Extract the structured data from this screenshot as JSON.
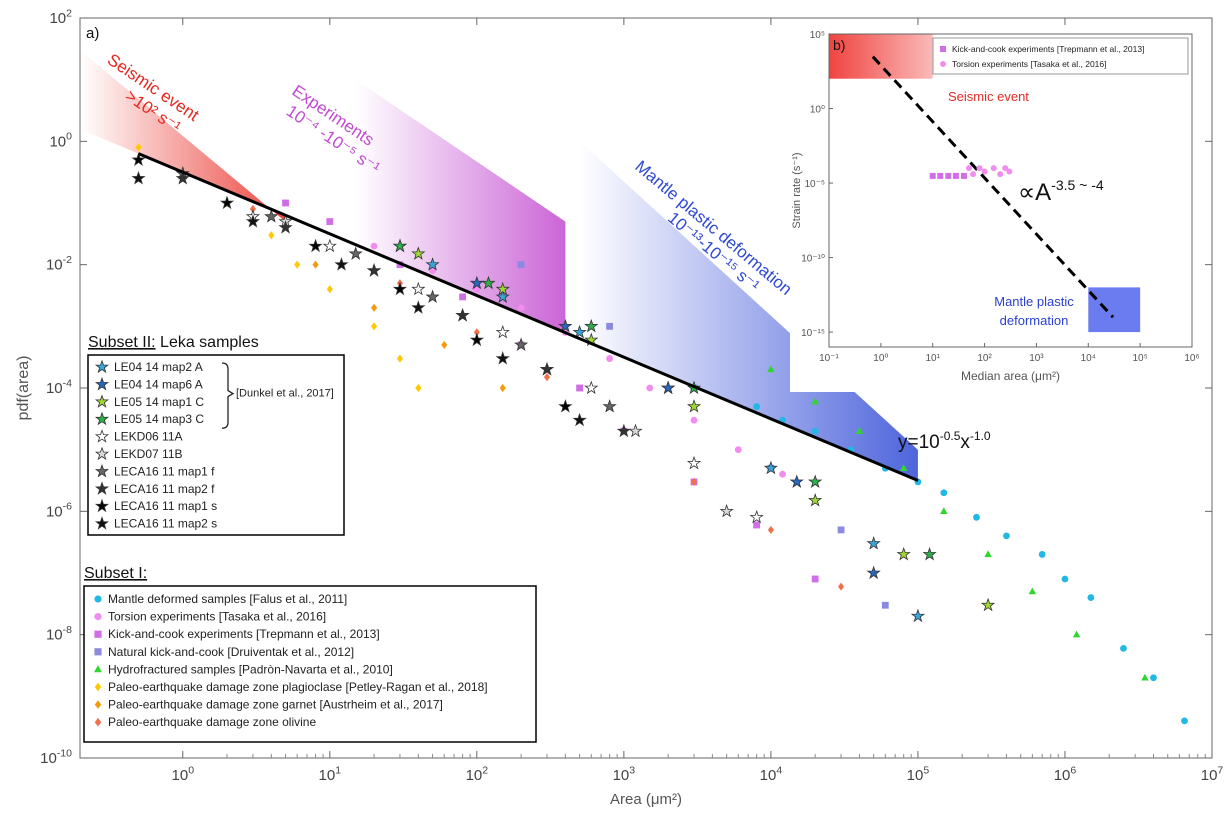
{
  "chart_data": [
    {
      "panel": "a)",
      "type": "scatter",
      "xlabel": "Area (μm²)",
      "ylabel": "pdf(area)",
      "xscale": "log",
      "yscale": "log",
      "xlim": [
        0.2,
        10000000
      ],
      "ylim": [
        1e-10,
        100
      ],
      "xticks": [
        {
          "base": "10",
          "exp": "0"
        },
        {
          "base": "10",
          "exp": "1"
        },
        {
          "base": "10",
          "exp": "2"
        },
        {
          "base": "10",
          "exp": "3"
        },
        {
          "base": "10",
          "exp": "4"
        },
        {
          "base": "10",
          "exp": "5"
        },
        {
          "base": "10",
          "exp": "6"
        },
        {
          "base": "10",
          "exp": "7"
        }
      ],
      "yticks": [
        {
          "base": "10",
          "exp": "-10"
        },
        {
          "base": "10",
          "exp": "-8"
        },
        {
          "base": "10",
          "exp": "-6"
        },
        {
          "base": "10",
          "exp": "-4"
        },
        {
          "base": "10",
          "exp": "-2"
        },
        {
          "base": "10",
          "exp": "0"
        },
        {
          "base": "10",
          "exp": "2"
        }
      ],
      "fit": {
        "label": "y=10",
        "label_exp": "-0.5",
        "label_mid": "x",
        "label_exp2": "-1.0",
        "intercept": 0.316,
        "slope": -1.0,
        "x_range": [
          0.5,
          100000
        ]
      },
      "bands": [
        {
          "lines": [
            "Seismic event",
            ">10²  s⁻¹"
          ],
          "color": "#e8261f",
          "x_range": [
            0.2,
            5
          ],
          "pdf_upper_at_start": 30,
          "pdf_upper_at_end": 0.05
        },
        {
          "lines": [
            "Experiments",
            "10⁻⁴ -10⁻⁵ s⁻¹"
          ],
          "color": "#c24ad0",
          "x_range": [
            15,
            400
          ],
          "pdf_upper_at_start": 10,
          "pdf_upper_at_end": 0.05
        },
        {
          "lines": [
            "Mantle plastic deformation",
            "10⁻¹³-10⁻¹⁵ s⁻¹"
          ],
          "color": "#2f49d6",
          "x_range": [
            500,
            100000
          ],
          "pdf_upper_at_start": 1,
          "pdf_upper_at_end": 1e-05
        }
      ],
      "series": [
        {
          "name": "Mantle deformed samples [Falus et al., 2011]",
          "marker": "circle",
          "color": "#22b8e6",
          "x": [
            8000,
            12000,
            20000,
            35000,
            60000,
            100000,
            150000,
            250000,
            400000,
            700000,
            1000000,
            1500000,
            2500000,
            4000000,
            6500000
          ],
          "y": [
            5e-05,
            3e-05,
            2e-05,
            1e-05,
            5e-06,
            3e-06,
            2e-06,
            8e-07,
            4e-07,
            2e-07,
            8e-08,
            4e-08,
            6e-09,
            2e-09,
            4e-10
          ]
        },
        {
          "name": "Torsion experiments [Tasaka et al., 2016]",
          "marker": "circle",
          "color": "#f28df0",
          "x": [
            20,
            50,
            100,
            200,
            400,
            800,
            1500,
            3000,
            6000,
            12000
          ],
          "y": [
            0.02,
            0.008,
            0.004,
            0.002,
            0.0008,
            0.0003,
            0.0001,
            3e-05,
            1e-05,
            4e-06
          ]
        },
        {
          "name": "Kick-and-cook experiments [Trepmann et al., 2013]",
          "marker": "square",
          "color": "#d06ee6",
          "x": [
            5,
            10,
            30,
            80,
            200,
            500,
            1000,
            3000,
            8000,
            20000
          ],
          "y": [
            0.1,
            0.05,
            0.01,
            0.003,
            0.0005,
            0.0001,
            2e-05,
            3e-06,
            6e-07,
            8e-08
          ]
        },
        {
          "name": "Natural kick-and-cook [Druiventak et al., 2012]",
          "marker": "square",
          "color": "#8a8ae0",
          "x": [
            200,
            800,
            3000,
            10000,
            30000,
            60000
          ],
          "y": [
            0.01,
            0.001,
            0.0001,
            5e-06,
            5e-07,
            3e-08
          ]
        },
        {
          "name": "Hydrofractured samples [Padròn-Navarta et al., 2010]",
          "marker": "triangle",
          "color": "#2fd62f",
          "x": [
            10000,
            20000,
            40000,
            80000,
            150000,
            300000,
            600000,
            1200000,
            3500000
          ],
          "y": [
            0.0002,
            6e-05,
            2e-05,
            5e-06,
            1e-06,
            2e-07,
            5e-08,
            1e-08,
            2e-09
          ]
        },
        {
          "name": "Paleo-earthquake damage zone plagioclase [Petley-Ragan et al., 2018]",
          "marker": "diamond",
          "color": "#ffc800",
          "x": [
            0.5,
            1,
            2,
            4,
            6,
            10,
            20,
            30,
            40
          ],
          "y": [
            0.8,
            0.3,
            0.1,
            0.03,
            0.01,
            0.004,
            0.001,
            0.0003,
            0.0001
          ]
        },
        {
          "name": "Paleo-earthquake damage zone garnet [Austrheim et al., 2017]",
          "marker": "diamond",
          "color": "#f59a0c",
          "x": [
            1,
            3,
            8,
            20,
            60,
            150
          ],
          "y": [
            0.3,
            0.06,
            0.01,
            0.002,
            0.0005,
            0.0001
          ]
        },
        {
          "name": "Paleo-earthquake damage zone olivine",
          "marker": "diamond",
          "color": "#f0704a",
          "x": [
            1,
            3,
            10,
            30,
            100,
            300,
            1000,
            3000,
            10000,
            30000
          ],
          "y": [
            0.3,
            0.08,
            0.02,
            0.005,
            0.0008,
            0.00015,
            2e-05,
            3e-06,
            5e-07,
            6e-08
          ]
        },
        {
          "name": "LE04 14 map2 A",
          "marker": "star",
          "color": "#39a6d8",
          "x": [
            50,
            150,
            500,
            2000,
            10000,
            50000,
            100000
          ],
          "y": [
            0.01,
            0.003,
            0.0008,
            0.0001,
            5e-06,
            3e-07,
            2e-08
          ]
        },
        {
          "name": "LE04 14 map6 A",
          "marker": "star",
          "color": "#2a66c0",
          "x": [
            30,
            100,
            400,
            2000,
            15000,
            50000
          ],
          "y": [
            0.02,
            0.005,
            0.001,
            0.0001,
            3e-06,
            1e-07
          ]
        },
        {
          "name": "LE05 14 map1 C",
          "marker": "star",
          "color": "#9ed835",
          "x": [
            40,
            150,
            600,
            3000,
            20000,
            80000,
            300000
          ],
          "y": [
            0.015,
            0.004,
            0.0006,
            5e-05,
            1.5e-06,
            2e-07,
            3e-08
          ]
        },
        {
          "name": "LE05 14 map3 C",
          "marker": "star",
          "color": "#2db04a",
          "x": [
            30,
            120,
            600,
            3000,
            20000,
            120000
          ],
          "y": [
            0.02,
            0.005,
            0.001,
            0.0001,
            3e-06,
            2e-07
          ]
        },
        {
          "name": "LEKD06 11A",
          "marker": "star",
          "color": "#ffffff",
          "x": [
            3,
            10,
            40,
            150,
            600,
            3000,
            8000
          ],
          "y": [
            0.06,
            0.02,
            0.004,
            0.0008,
            0.0001,
            6e-06,
            8e-07
          ]
        },
        {
          "name": "LEKD07 11B",
          "marker": "star",
          "color": "#d9d9d9",
          "x": [
            5,
            20,
            80,
            300,
            1200,
            5000
          ],
          "y": [
            0.05,
            0.008,
            0.0015,
            0.0002,
            2e-05,
            1e-06
          ]
        },
        {
          "name": "LECA16 11 map1 f",
          "marker": "star",
          "color": "#666666",
          "x": [
            1,
            4,
            15,
            50,
            200,
            800
          ],
          "y": [
            0.3,
            0.06,
            0.015,
            0.003,
            0.0005,
            5e-05
          ]
        },
        {
          "name": "LECA16 11 map2 f",
          "marker": "star",
          "color": "#333333",
          "x": [
            1,
            5,
            20,
            80,
            300,
            1000
          ],
          "y": [
            0.25,
            0.04,
            0.008,
            0.0015,
            0.0002,
            2e-05
          ]
        },
        {
          "name": "LECA16 11 map1 s",
          "marker": "star",
          "color": "#000000",
          "x": [
            0.5,
            2,
            8,
            30,
            100,
            400
          ],
          "y": [
            0.5,
            0.1,
            0.02,
            0.004,
            0.0006,
            5e-05
          ]
        },
        {
          "name": "LECA16 11 map2 s",
          "marker": "star",
          "color": "#111111",
          "x": [
            0.5,
            3,
            12,
            40,
            150,
            500
          ],
          "y": [
            0.25,
            0.05,
            0.01,
            0.002,
            0.0003,
            3e-05
          ]
        }
      ],
      "legend_subset2": {
        "title_bold": "Subset II:",
        "title_rest": " Leka samples",
        "bracket_note": "[Dunkel et al., 2017]",
        "bracket_range": [
          0,
          3
        ],
        "items": [
          8,
          9,
          10,
          11,
          12,
          13,
          14,
          15,
          16,
          17
        ]
      },
      "legend_subset1": {
        "title": "Subset I:",
        "items": [
          0,
          1,
          2,
          3,
          4,
          5,
          6,
          7
        ]
      }
    },
    {
      "panel": "b)",
      "type": "scatter",
      "xlabel": "Median area (μm²)",
      "ylabel": "Strain rate (s⁻¹)",
      "xscale": "log",
      "yscale": "log",
      "xlim": [
        0.1,
        1000000
      ],
      "ylim": [
        1e-16,
        100000
      ],
      "xticks": [
        "10⁻¹",
        "10⁰",
        "10¹",
        "10²",
        "10³",
        "10⁴",
        "10⁵",
        "10⁶"
      ],
      "yticks": [
        {
          "v": 100000,
          "label": "10⁵"
        },
        {
          "v": 1,
          "label": "10⁰"
        },
        {
          "v": 1e-05,
          "label": "10⁻⁵"
        },
        {
          "v": 1e-10,
          "label": "10⁻¹⁰"
        },
        {
          "v": 1e-15,
          "label": "10⁻¹⁵"
        }
      ],
      "fit": {
        "prefix": "∝A",
        "exp": "-3.5 ~ -4",
        "x_range": [
          0.7,
          30000
        ],
        "y_range": [
          3000,
          1e-14
        ]
      },
      "boxes": [
        {
          "label_lines": [
            "Seismic event"
          ],
          "color": "#ef3a36",
          "x_range": [
            0.1,
            10
          ],
          "y_range": [
            100,
            100000
          ]
        },
        {
          "label_lines": [
            "Mantle plastic",
            "deformation"
          ],
          "color": "#6a7cf0",
          "x_range": [
            10000,
            100000
          ],
          "y_range": [
            1e-15,
            1e-12
          ]
        }
      ],
      "series": [
        {
          "name": "Kick-and-cook experiments [Trepmann et al., 2013]",
          "marker": "square",
          "color": "#d06ee6",
          "x": [
            10,
            14,
            20,
            28,
            40
          ],
          "y": [
            3e-05,
            3e-05,
            3e-05,
            3e-05,
            3e-05
          ]
        },
        {
          "name": "Torsion experiments [Tasaka et al., 2016]",
          "marker": "circle",
          "color": "#f28df0",
          "x": [
            50,
            60,
            80,
            100,
            150,
            200,
            250,
            300
          ],
          "y": [
            0.0001,
            4e-05,
            0.0001,
            6e-05,
            0.0001,
            4e-05,
            0.0001,
            6e-05
          ]
        }
      ]
    }
  ]
}
